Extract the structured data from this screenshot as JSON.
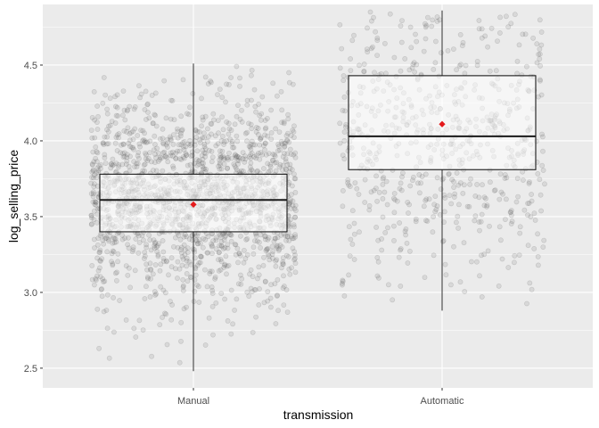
{
  "chart_data": {
    "type": "box",
    "xlabel": "transmission",
    "ylabel": "log_selling_price",
    "categories": [
      "Manual",
      "Automatic"
    ],
    "ylim": [
      2.37,
      4.9
    ],
    "yticks": [
      2.5,
      3.0,
      3.5,
      4.0,
      4.5
    ],
    "ytick_labels": [
      "2.5",
      "3.0",
      "3.5",
      "4.0",
      "4.5"
    ],
    "grid": true,
    "boxes": [
      {
        "category": "Manual",
        "whisker_low": 2.48,
        "q1": 3.4,
        "median": 3.61,
        "q3": 3.78,
        "whisker_high": 4.51,
        "mean": 3.58,
        "jitter_points": 1800,
        "points_range": [
          2.48,
          4.51
        ]
      },
      {
        "category": "Automatic",
        "whisker_low": 2.88,
        "q1": 3.81,
        "median": 4.03,
        "q3": 4.43,
        "whisker_high": 4.86,
        "mean": 4.11,
        "jitter_points": 650,
        "points_range": [
          2.88,
          4.86
        ]
      }
    ],
    "colors": {
      "panel_background": "#ebebeb",
      "grid": "#ffffff",
      "points": "#555555",
      "box_line": "#1a1a1a",
      "box_fill": "#ffffff",
      "mean_marker": "#e41a1c"
    }
  }
}
